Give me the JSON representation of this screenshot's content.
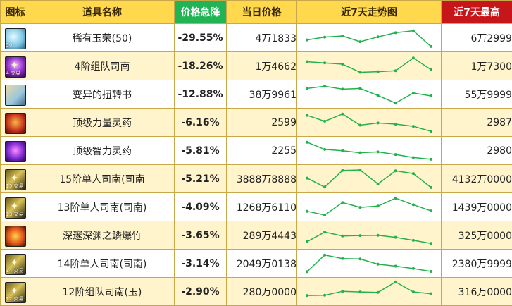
{
  "headers": {
    "icon": "图标",
    "name": "道具名称",
    "drop": "价格急降",
    "price": "当日价格",
    "trend": "近7天走势图",
    "max": "近7天最高"
  },
  "rows": [
    {
      "icon": "jade-orb-icon",
      "icon_style": "jade",
      "badge": "50",
      "name": "稀有玉荣(50)",
      "drop": "-29.55%",
      "price": "4万1833",
      "max": "6万2999",
      "trend": [
        0.4,
        0.53,
        0.58,
        0.32,
        0.54,
        0.73,
        0.82,
        0.1
      ]
    },
    {
      "icon": "team-sinan-icon",
      "icon_style": "purple",
      "badge": "4 交易",
      "name": "4阶组队司南",
      "drop": "-18.26%",
      "price": "1万4662",
      "max": "1万7300",
      "trend": [
        0.69,
        0.64,
        0.58,
        0.21,
        0.24,
        0.28,
        0.86,
        0.33
      ]
    },
    {
      "icon": "twist-book-icon",
      "icon_style": "book",
      "badge": "",
      "name": "变异的扭转书",
      "drop": "-12.88%",
      "price": "38万9961",
      "max": "55万9999",
      "trend": [
        0.76,
        0.86,
        0.73,
        0.76,
        0.44,
        0.09,
        0.55,
        0.42
      ]
    },
    {
      "icon": "strength-potion-icon",
      "icon_style": "red",
      "badge": "",
      "name": "顶级力量灵药",
      "drop": "-6.16%",
      "price": "2599",
      "max": "2987",
      "trend": [
        0.82,
        0.55,
        0.88,
        0.37,
        0.47,
        0.42,
        0.32,
        0.09
      ]
    },
    {
      "icon": "intellect-potion-icon",
      "icon_style": "violet",
      "badge": "",
      "name": "顶级智力灵药",
      "drop": "-5.81%",
      "price": "2255",
      "max": "2980",
      "trend": [
        0.88,
        0.55,
        0.49,
        0.4,
        0.44,
        0.32,
        0.18,
        0.1
      ]
    },
    {
      "icon": "solo-sinan-15-icon",
      "icon_style": "gold",
      "badge": "15 交易",
      "name": "15阶单人司南(司南",
      "drop": "-5.21%",
      "price": "3888万8888",
      "max": "4132万0000",
      "trend": [
        0.53,
        0.12,
        0.88,
        0.9,
        0.26,
        0.86,
        0.74,
        0.1
      ]
    },
    {
      "icon": "solo-sinan-13-icon",
      "icon_style": "gold",
      "badge": "13 交易",
      "name": "13阶单人司南(司南)",
      "drop": "-4.09%",
      "price": "1268万6110",
      "max": "1439万0000",
      "trend": [
        0.3,
        0.13,
        0.7,
        0.48,
        0.54,
        0.9,
        0.6,
        0.32
      ]
    },
    {
      "icon": "abyss-firecracker-icon",
      "icon_style": "ember",
      "badge": "",
      "name": "深邃深渊之鳞爆竹",
      "drop": "-3.65%",
      "price": "289万4443",
      "max": "325万0000",
      "trend": [
        0.2,
        0.64,
        0.46,
        0.48,
        0.49,
        0.4,
        0.26,
        0.12
      ]
    },
    {
      "icon": "solo-sinan-14-icon",
      "icon_style": "gold",
      "badge": "14 交易",
      "name": "14阶单人司南(司南)",
      "drop": "-3.14%",
      "price": "2049万0138",
      "max": "2380万9999",
      "trend": [
        0.12,
        0.88,
        0.72,
        0.7,
        0.46,
        0.37,
        0.26,
        0.13
      ]
    },
    {
      "icon": "team-sinan-12-icon",
      "icon_style": "gold",
      "badge": "12 交易",
      "name": "12阶组队司南(玉)",
      "drop": "-2.90%",
      "price": "280万0000",
      "max": "316万0000",
      "trend": [
        0.32,
        0.33,
        0.51,
        0.48,
        0.46,
        0.94,
        0.48,
        0.4
      ]
    }
  ],
  "colors": {
    "header": "#ffd84d",
    "drop_header": "#20b455",
    "max_header": "#c7161a",
    "row_alt": "#fff4cc",
    "drop_text": "#16a34a",
    "trend_line": "#22b24c"
  }
}
